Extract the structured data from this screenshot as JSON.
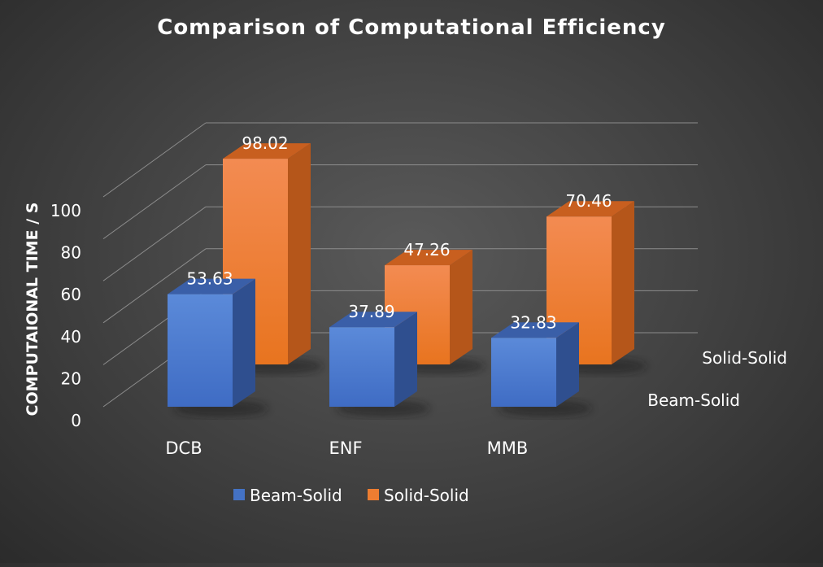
{
  "chart_data": {
    "type": "bar",
    "title": "Comparison of Computational Efficiency",
    "ylabel": "COMPUTAIONAL TIME / S",
    "xlabel": "",
    "categories": [
      "DCB",
      "ENF",
      "MMB"
    ],
    "series": [
      {
        "name": "Beam-Solid",
        "values": [
          53.63,
          37.89,
          32.83
        ],
        "color": "#4472C4"
      },
      {
        "name": "Solid-Solid",
        "values": [
          98.02,
          47.26,
          70.46
        ],
        "color": "#ED7D31"
      }
    ],
    "yticks": [
      0,
      20,
      40,
      60,
      80,
      100
    ],
    "ylim": [
      0,
      100
    ],
    "grid": true,
    "legend": "bottom",
    "style": "3d-column"
  }
}
